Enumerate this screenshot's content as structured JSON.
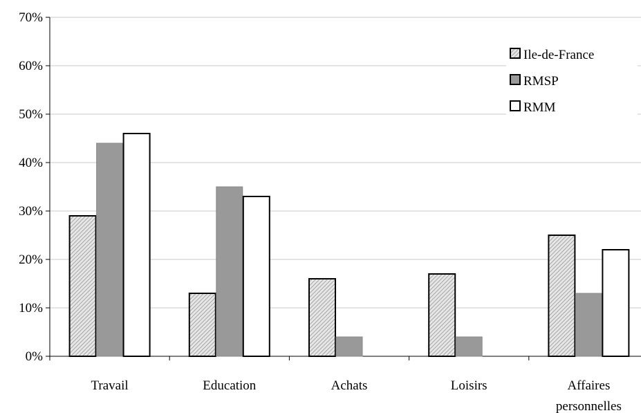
{
  "chart_data": {
    "type": "bar",
    "title": "",
    "xlabel": "",
    "ylabel": "",
    "ylim": [
      0,
      70
    ],
    "yticks": [
      0,
      10,
      20,
      30,
      40,
      50,
      60,
      70
    ],
    "ytick_labels": [
      "0%",
      "10%",
      "20%",
      "30%",
      "40%",
      "50%",
      "60%",
      "70%"
    ],
    "grid": true,
    "legend_position": "top-right",
    "categories": [
      [
        "Travail"
      ],
      [
        "Education"
      ],
      [
        "Achats"
      ],
      [
        "Loisirs"
      ],
      [
        "Affaires",
        "personnelles"
      ]
    ],
    "series": [
      {
        "name": "Ile-de-France",
        "fill": "hatched",
        "values": [
          29,
          13,
          16,
          17,
          25
        ]
      },
      {
        "name": "RMSP",
        "fill": "#999999",
        "values": [
          44,
          35,
          4,
          4,
          13
        ]
      },
      {
        "name": "RMM",
        "fill": "#ffffff",
        "values": [
          46,
          33,
          0,
          0,
          22
        ]
      }
    ]
  }
}
